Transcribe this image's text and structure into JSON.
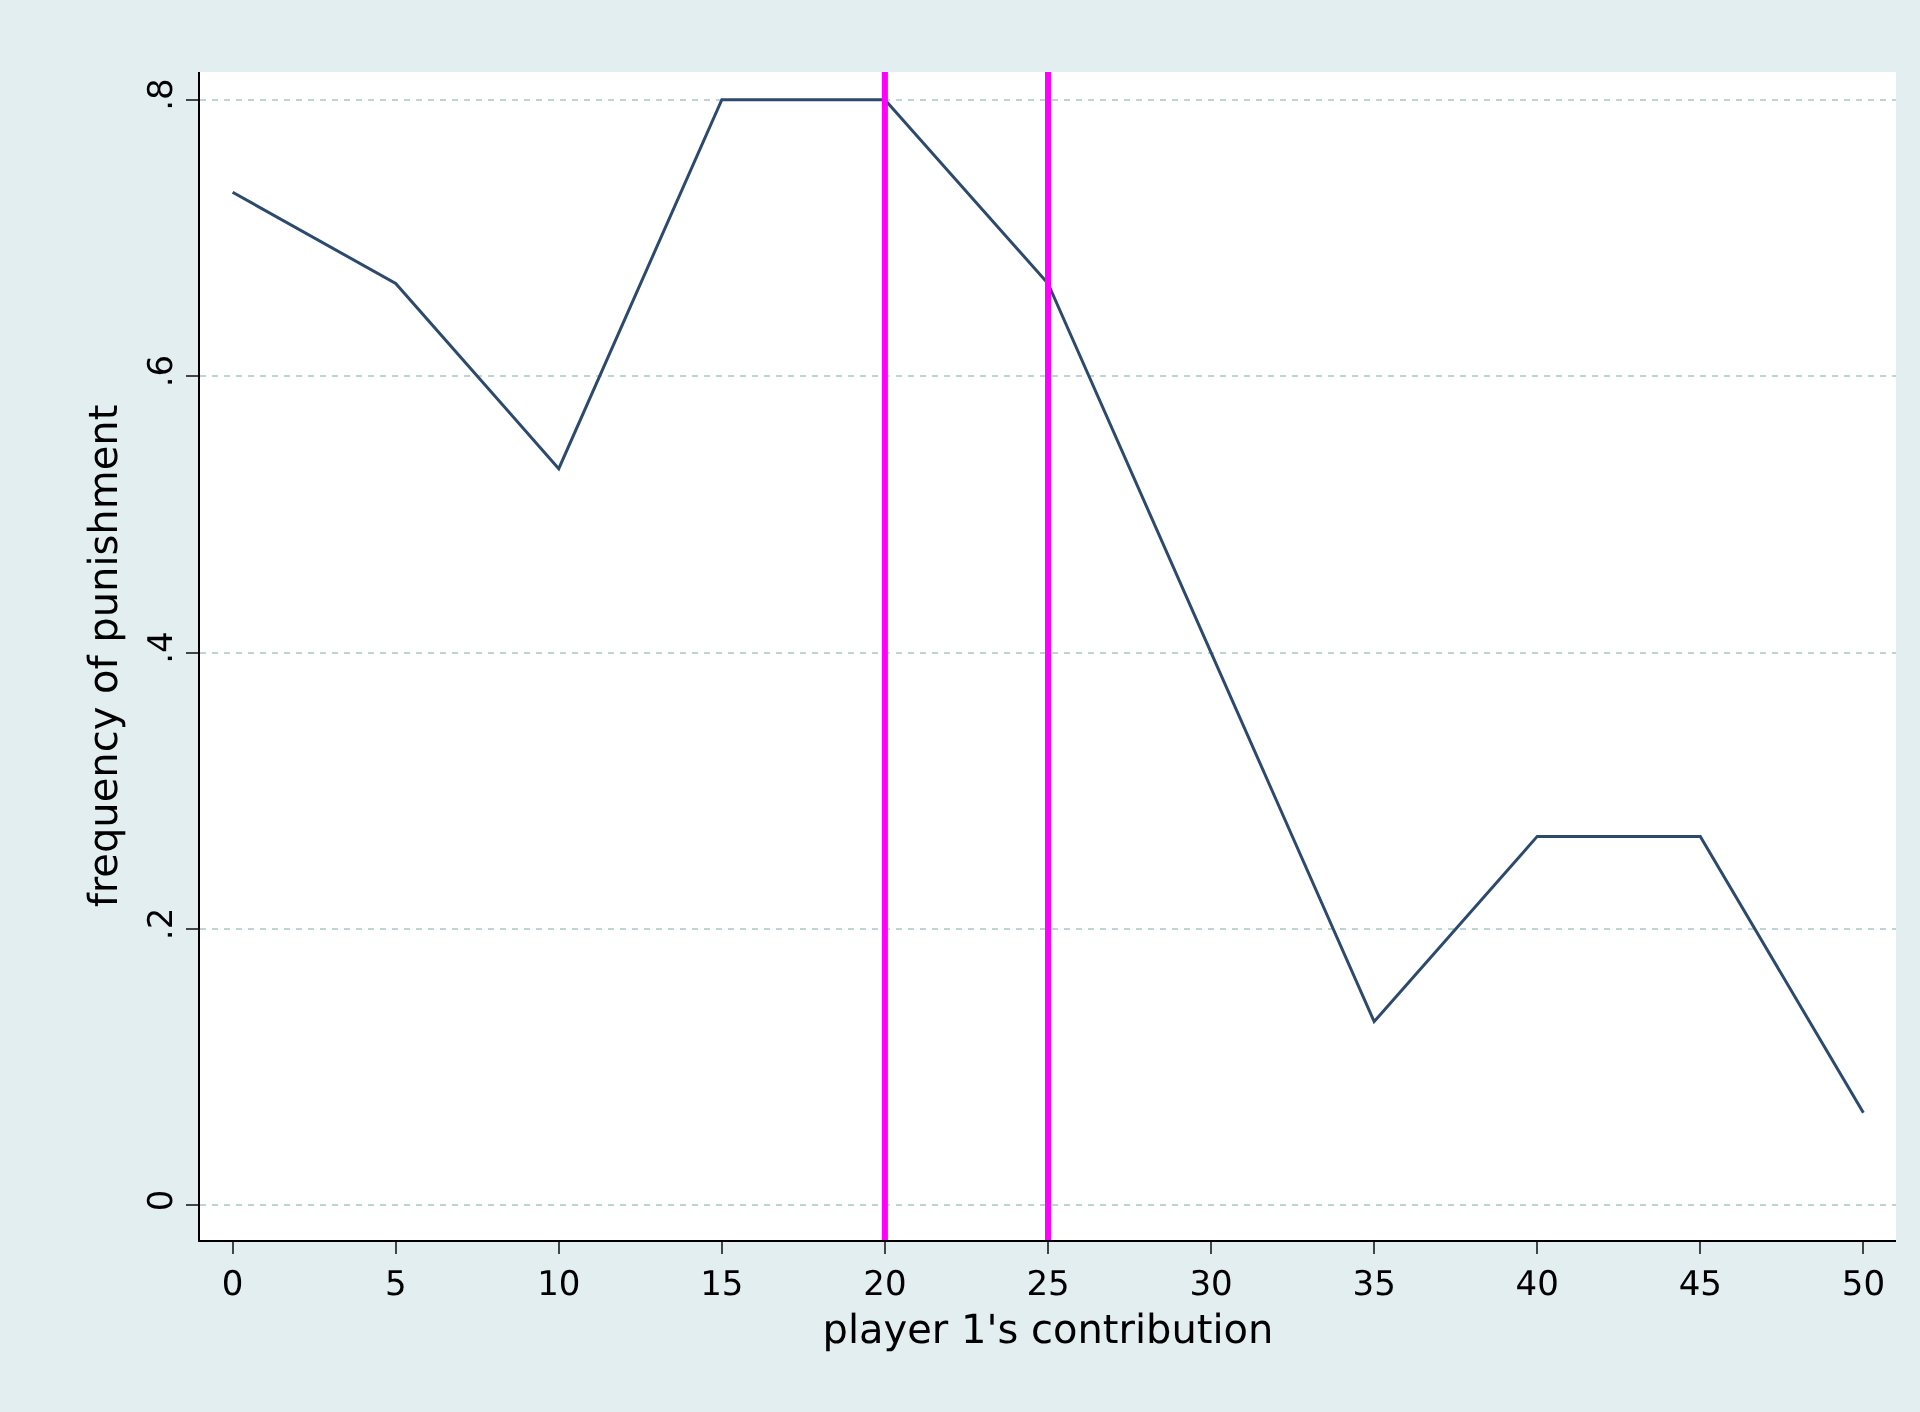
{
  "chart_data": {
    "type": "line",
    "xlabel": "player 1's contribution",
    "ylabel": "frequency of punishment",
    "x": [
      0,
      5,
      10,
      15,
      20,
      25,
      30,
      35,
      40,
      45,
      50
    ],
    "series": [
      {
        "color": "#2c4a6e",
        "values": [
          0.733,
          0.667,
          0.533,
          0.8,
          0.8,
          0.667,
          0.4,
          0.133,
          0.267,
          0.267,
          0.067
        ]
      }
    ],
    "xlim": [
      -1,
      51
    ],
    "xticks": [
      0,
      5,
      10,
      15,
      20,
      25,
      30,
      35,
      40,
      45,
      50
    ],
    "ylim": [
      -0.025,
      0.82
    ],
    "yticks": [
      {
        "value": 0,
        "label": "0"
      },
      {
        "value": 0.2,
        "label": ".2"
      },
      {
        "value": 0.4,
        "label": ".4"
      },
      {
        "value": 0.6,
        "label": ".6"
      },
      {
        "value": 0.8,
        "label": ".8"
      }
    ],
    "grid": "y",
    "marker": "none",
    "line_style": "solid",
    "ref_lines": [
      {
        "axis": "x",
        "value": 20,
        "color": "#ff00ff"
      },
      {
        "axis": "x",
        "value": 25,
        "color": "#ff00ff"
      }
    ]
  }
}
